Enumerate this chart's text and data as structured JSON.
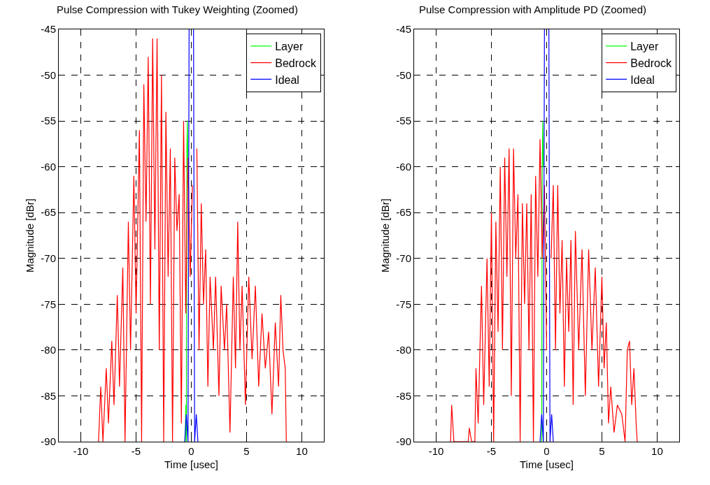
{
  "chart_data": [
    {
      "type": "line",
      "title": "Pulse Compression with Tukey Weighting (Zoomed)",
      "xlabel": "Time [usec]",
      "ylabel": "Magnitude [dBr]",
      "xlim": [
        -12,
        12
      ],
      "ylim": [
        -90,
        -45
      ],
      "xticks": [
        -10,
        -5,
        0,
        5,
        10
      ],
      "yticks": [
        -90,
        -85,
        -80,
        -75,
        -70,
        -65,
        -60,
        -55,
        -50,
        -45
      ],
      "grid": true,
      "legend": "top right",
      "line_style": "solid",
      "marker": "none",
      "series": [
        {
          "name": "Layer",
          "color": "#00ff00",
          "x": [
            -0.55,
            -0.5,
            -0.45,
            -0.4,
            -0.35,
            -0.3
          ],
          "values": [
            -90,
            -86,
            -90,
            -58,
            -55,
            -61
          ]
        },
        {
          "name": "Bedrock",
          "color": "#ff0000",
          "x": [
            -8.4,
            -8.2,
            -8.0,
            -7.7,
            -7.5,
            -7.2,
            -7.0,
            -6.7,
            -6.5,
            -6.2,
            -6.0,
            -5.7,
            -5.5,
            -5.2,
            -5.0,
            -4.7,
            -4.5,
            -4.3,
            -4.1,
            -3.9,
            -3.7,
            -3.5,
            -3.3,
            -3.1,
            -2.9,
            -2.7,
            -2.5,
            -2.3,
            -2.1,
            -1.9,
            -1.7,
            -1.5,
            -1.3,
            -1.1,
            -0.9,
            -0.7,
            -0.5,
            -0.3,
            -0.1,
            0.1,
            0.3,
            0.5,
            0.7,
            0.9,
            1.1,
            1.3,
            1.5,
            1.7,
            2.0,
            2.2,
            2.5,
            2.7,
            3.0,
            3.2,
            3.5,
            3.8,
            4.0,
            4.2,
            4.4,
            4.6,
            4.9,
            5.2,
            5.5,
            5.8,
            6.1,
            6.4,
            6.7,
            7.0,
            7.3,
            7.6,
            7.9,
            8.1,
            8.3,
            8.5,
            8.6
          ],
          "values": [
            -90,
            -84,
            -90,
            -82,
            -88,
            -79,
            -86,
            -74,
            -84,
            -71,
            -90,
            -66,
            -80,
            -61,
            -76,
            -56,
            -90,
            -51,
            -66,
            -48,
            -75,
            -46,
            -69,
            -46,
            -80,
            -50,
            -90,
            -54,
            -72,
            -58,
            -90,
            -59,
            -67,
            -63,
            -88,
            -55,
            -76,
            -59,
            -72,
            -62,
            null,
            -58,
            -80,
            -64,
            -75,
            -69,
            -84,
            -72,
            -80,
            -72,
            -85,
            -73,
            -80,
            -75,
            -89,
            -72,
            -82,
            -66,
            -80,
            -73,
            -86,
            -72,
            -81,
            -73,
            -84,
            -76,
            -82,
            -78,
            -87,
            -77,
            -84,
            -74,
            -80,
            -82,
            -90
          ]
        },
        {
          "name": "Ideal",
          "color": "#0000ff",
          "x": [
            -0.6,
            -0.45,
            -0.3,
            -0.2,
            0,
            0.2,
            0.3,
            0.45,
            0.6
          ],
          "values": [
            -90,
            -87,
            -90,
            -45,
            null,
            -45,
            -90,
            -87,
            -90
          ]
        }
      ]
    },
    {
      "type": "line",
      "title": "Pulse Compression with Amplitude PD (Zoomed)",
      "xlabel": "Time [usec]",
      "ylabel": "Magnitude [dBr]",
      "xlim": [
        -12,
        12
      ],
      "ylim": [
        -90,
        -45
      ],
      "xticks": [
        -10,
        -5,
        0,
        5,
        10
      ],
      "yticks": [
        -90,
        -85,
        -80,
        -75,
        -70,
        -65,
        -60,
        -55,
        -50,
        -45
      ],
      "grid": true,
      "legend": "top right",
      "line_style": "solid",
      "marker": "none",
      "series": [
        {
          "name": "Layer",
          "color": "#00ff00",
          "x": [
            -0.45,
            -0.4,
            -0.35,
            -0.3
          ],
          "values": [
            -90,
            -60,
            -55,
            -60
          ]
        },
        {
          "name": "Bedrock",
          "color": "#ff0000",
          "x": [
            -8.7,
            -8.6,
            -8.4,
            -7.1,
            -7.0,
            -6.8,
            -6.5,
            -6.4,
            -6.2,
            -5.9,
            -5.7,
            -5.4,
            -5.2,
            -5.0,
            -4.8,
            -4.6,
            -4.4,
            -4.2,
            -4.0,
            -3.8,
            -3.6,
            -3.4,
            -3.2,
            -3.0,
            -2.8,
            -2.6,
            -2.4,
            -2.2,
            -2.0,
            -1.8,
            -1.6,
            -1.4,
            -1.2,
            -1.0,
            -0.8,
            -0.6,
            -0.4,
            -0.2,
            0.0,
            0.2,
            0.4,
            0.6,
            0.8,
            1.0,
            1.2,
            1.4,
            1.6,
            1.8,
            2.0,
            2.2,
            2.4,
            2.6,
            2.9,
            3.2,
            3.5,
            3.8,
            4.1,
            4.4,
            4.7,
            5.0,
            5.2,
            5.4,
            5.6,
            5.8,
            6.1,
            6.4,
            6.8,
            7.1,
            7.3,
            7.5,
            7.7,
            7.9,
            8.1,
            8.2
          ],
          "values": [
            -90,
            -86,
            -90,
            -90,
            -88.5,
            -90,
            -90,
            -82,
            -88,
            -73,
            -86,
            -70,
            -84,
            -65,
            -90,
            -66,
            -78,
            -60,
            -80,
            -59,
            -72,
            -58,
            -85,
            -58,
            -70,
            -63,
            -90,
            -64,
            -75,
            -64,
            -80,
            -63,
            -90,
            -61,
            -72,
            -57,
            -70,
            -62,
            -80,
            null,
            -70,
            -62,
            -80,
            -62,
            -76,
            -68,
            -84,
            -70,
            -78,
            -68,
            -86,
            -67,
            -80,
            -69,
            -85,
            -69,
            -80,
            -71,
            -84,
            -72,
            -82,
            -77,
            -88,
            -84,
            -89,
            -86,
            -87,
            -90,
            -80,
            -79,
            -86,
            -82,
            -88,
            -90
          ]
        },
        {
          "name": "Ideal",
          "color": "#0000ff",
          "x": [
            -0.6,
            -0.45,
            -0.3,
            -0.2,
            0,
            0.2,
            0.3,
            0.45,
            0.6
          ],
          "values": [
            -90,
            -87,
            -90,
            -45,
            null,
            -45,
            -90,
            -87,
            -90
          ]
        }
      ]
    }
  ]
}
